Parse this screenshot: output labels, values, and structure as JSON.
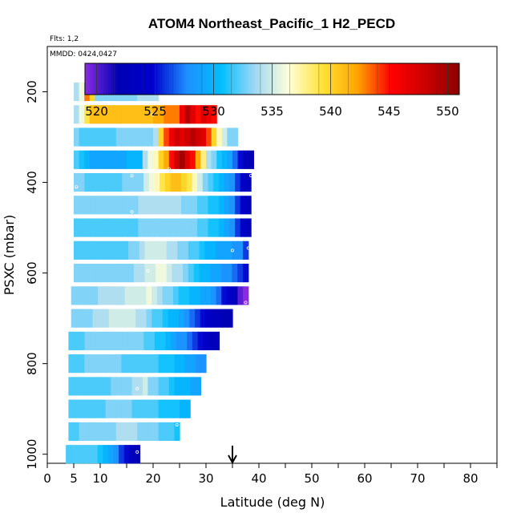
{
  "chart_data": {
    "type": "heatmap",
    "title": "ATOM4 Northeast_Pacific_1 H2_PECD",
    "subtitle_flights": "Flts: 1,2",
    "subtitle_dates": "MMDD: 0424,0427",
    "xlabel": "Latitude (deg N)",
    "ylabel": "PSXC (mbar)",
    "xlim": [
      0,
      85
    ],
    "ylim": [
      1020,
      100
    ],
    "x_ticks": [
      0,
      5,
      10,
      20,
      30,
      40,
      50,
      60,
      70,
      80
    ],
    "x_minor_ticks": [
      15,
      25,
      35,
      45,
      55,
      65,
      75,
      85
    ],
    "y_ticks": [
      200,
      400,
      600,
      800,
      1000
    ],
    "colorbar": {
      "range": [
        519,
        551
      ],
      "ticks": [
        520,
        525,
        530,
        535,
        540,
        545,
        550
      ],
      "colors": [
        "#8a2be2",
        "#0000b4",
        "#0000cd",
        "#1e90ff",
        "#00bfff",
        "#9fd8f5",
        "#ffffd8",
        "#ffe135",
        "#ffa500",
        "#ff0000",
        "#cd0000",
        "#8b0000"
      ]
    },
    "arrow_latitude": 35,
    "rows": [
      {
        "p": 200,
        "x0": 5,
        "x1": 21,
        "v": [
          534,
          536,
          543,
          540,
          533,
          533,
          533,
          533,
          533,
          533,
          533,
          533,
          534,
          534,
          534,
          534
        ]
      },
      {
        "p": 250,
        "x0": 5,
        "x1": 32,
        "v": [
          534,
          536,
          539,
          541,
          541,
          541,
          541,
          541,
          541,
          541,
          541,
          541,
          541,
          541,
          541,
          542,
          542,
          543,
          543,
          543,
          546,
          549,
          547,
          545,
          547,
          546,
          545
        ]
      },
      {
        "p": 300,
        "x0": 5,
        "x1": 36,
        "v": [
          533,
          532,
          532,
          532,
          532,
          532,
          532,
          532,
          533,
          533,
          533,
          533,
          533,
          533,
          533,
          534,
          540,
          544,
          546,
          548,
          547,
          548,
          549,
          548,
          547,
          544,
          540,
          537,
          535,
          533,
          533
        ]
      },
      {
        "p": 350,
        "x0": 5,
        "x1": 39,
        "v": [
          532,
          531,
          530,
          529,
          529,
          529,
          529,
          529,
          529,
          529,
          530,
          530,
          530,
          534,
          536,
          537,
          540,
          542,
          545,
          548,
          550,
          547,
          545,
          542,
          538,
          534,
          533,
          531,
          530,
          529,
          527,
          525,
          523,
          522
        ]
      },
      {
        "p": 400,
        "x0": 5,
        "x1": 38.5,
        "v": [
          533,
          533,
          532,
          532,
          532,
          532,
          532,
          532,
          532,
          533,
          533,
          533,
          533,
          535,
          536,
          537,
          539,
          540,
          541,
          541,
          540,
          539,
          537,
          535,
          533,
          532,
          531,
          530,
          529,
          528,
          526,
          524,
          523
        ]
      },
      {
        "p": 450,
        "x0": 5,
        "x1": 38.5,
        "v": [
          533,
          533,
          533,
          533,
          533,
          533,
          533,
          533,
          533,
          533,
          533,
          533,
          534,
          534,
          534,
          534,
          534,
          534,
          534,
          534,
          533,
          533,
          533,
          532,
          532,
          531,
          531,
          530,
          529,
          528,
          526,
          524,
          523
        ]
      },
      {
        "p": 500,
        "x0": 5,
        "x1": 38.5,
        "v": [
          532,
          532,
          532,
          532,
          532,
          532,
          532,
          532,
          532,
          532,
          532,
          532,
          533,
          533,
          533,
          533,
          533,
          533,
          533,
          533,
          533,
          533,
          533,
          532,
          532,
          531,
          531,
          530,
          529,
          528,
          526,
          524,
          523
        ]
      },
      {
        "p": 550,
        "x0": 5,
        "x1": 38,
        "v": [
          532,
          532,
          532,
          532,
          532,
          532,
          532,
          532,
          532,
          532,
          533,
          533,
          534,
          535,
          535,
          535,
          535,
          534,
          534,
          533,
          533,
          532,
          532,
          531,
          530,
          530,
          529,
          529,
          529,
          528,
          528,
          526
        ]
      },
      {
        "p": 600,
        "x0": 5,
        "x1": 38,
        "v": [
          533,
          533,
          533,
          533,
          533,
          533,
          533,
          533,
          533,
          533,
          533,
          534,
          534,
          535,
          535,
          536,
          536,
          535,
          534,
          534,
          533,
          532,
          531,
          530,
          530,
          529,
          529,
          528,
          528,
          527,
          526,
          525
        ]
      },
      {
        "p": 650,
        "x0": 4.5,
        "x1": 38,
        "v": [
          533,
          533,
          533,
          533,
          533,
          534,
          534,
          534,
          534,
          534,
          535,
          535,
          535,
          535,
          536,
          535,
          534,
          533,
          533,
          532,
          531,
          531,
          530,
          530,
          529,
          529,
          528,
          527,
          525,
          524,
          523,
          520,
          519
        ]
      },
      {
        "p": 700,
        "x0": 4.5,
        "x1": 35,
        "v": [
          533,
          533,
          533,
          533,
          534,
          534,
          534,
          535,
          535,
          535,
          535,
          535,
          534,
          534,
          533,
          532,
          532,
          531,
          530,
          530,
          529,
          528,
          527,
          526,
          525,
          524,
          523,
          523,
          522,
          522
        ]
      },
      {
        "p": 750,
        "x0": 4,
        "x1": 32.5,
        "v": [
          532,
          532,
          532,
          533,
          533,
          533,
          533,
          533,
          533,
          533,
          533,
          533,
          533,
          533,
          532,
          532,
          531,
          531,
          530,
          529,
          528,
          528,
          527,
          526,
          525,
          524,
          523,
          523
        ]
      },
      {
        "p": 800,
        "x0": 4,
        "x1": 30,
        "v": [
          532,
          532,
          532,
          533,
          533,
          533,
          533,
          533,
          533,
          533,
          532,
          532,
          532,
          532,
          532,
          532,
          532,
          531,
          531,
          531,
          530,
          530,
          529,
          529,
          528,
          528
        ]
      },
      {
        "p": 850,
        "x0": 4,
        "x1": 29,
        "v": [
          532,
          532,
          532,
          532,
          532,
          532,
          532,
          532,
          533,
          533,
          533,
          533,
          534,
          534,
          535,
          533,
          533,
          532,
          532,
          531,
          530,
          530,
          530,
          529,
          529
        ]
      },
      {
        "p": 900,
        "x0": 4,
        "x1": 27,
        "v": [
          532,
          532,
          532,
          532,
          532,
          532,
          532,
          533,
          533,
          533,
          533,
          533,
          532,
          532,
          532,
          532,
          532,
          531,
          531,
          531,
          531,
          530,
          530
        ]
      },
      {
        "p": 950,
        "x0": 4,
        "x1": 25,
        "v": [
          532,
          532,
          533,
          533,
          533,
          533,
          533,
          533,
          533,
          534,
          534,
          534,
          534,
          533,
          533,
          533,
          533,
          532,
          532,
          532,
          531
        ]
      },
      {
        "p": 1000,
        "x0": 3.5,
        "x1": 17.5,
        "v": [
          532,
          532,
          532,
          532,
          532,
          532,
          531,
          530,
          529,
          528,
          526,
          525,
          523,
          522
        ]
      }
    ],
    "markers": [
      {
        "lat": 20,
        "p": 250
      },
      {
        "lat": 28,
        "p": 275
      },
      {
        "lat": 30,
        "p": 275
      },
      {
        "lat": 31,
        "p": 275
      },
      {
        "lat": 23,
        "p": 370
      },
      {
        "lat": 16,
        "p": 385
      },
      {
        "lat": 38.5,
        "p": 385
      },
      {
        "lat": 5.5,
        "p": 410
      },
      {
        "lat": 16,
        "p": 465
      },
      {
        "lat": 35,
        "p": 550
      },
      {
        "lat": 38,
        "p": 545
      },
      {
        "lat": 19,
        "p": 595
      },
      {
        "lat": 37.5,
        "p": 665
      },
      {
        "lat": 17,
        "p": 855
      },
      {
        "lat": 24.5,
        "p": 935
      },
      {
        "lat": 17,
        "p": 995
      }
    ]
  }
}
